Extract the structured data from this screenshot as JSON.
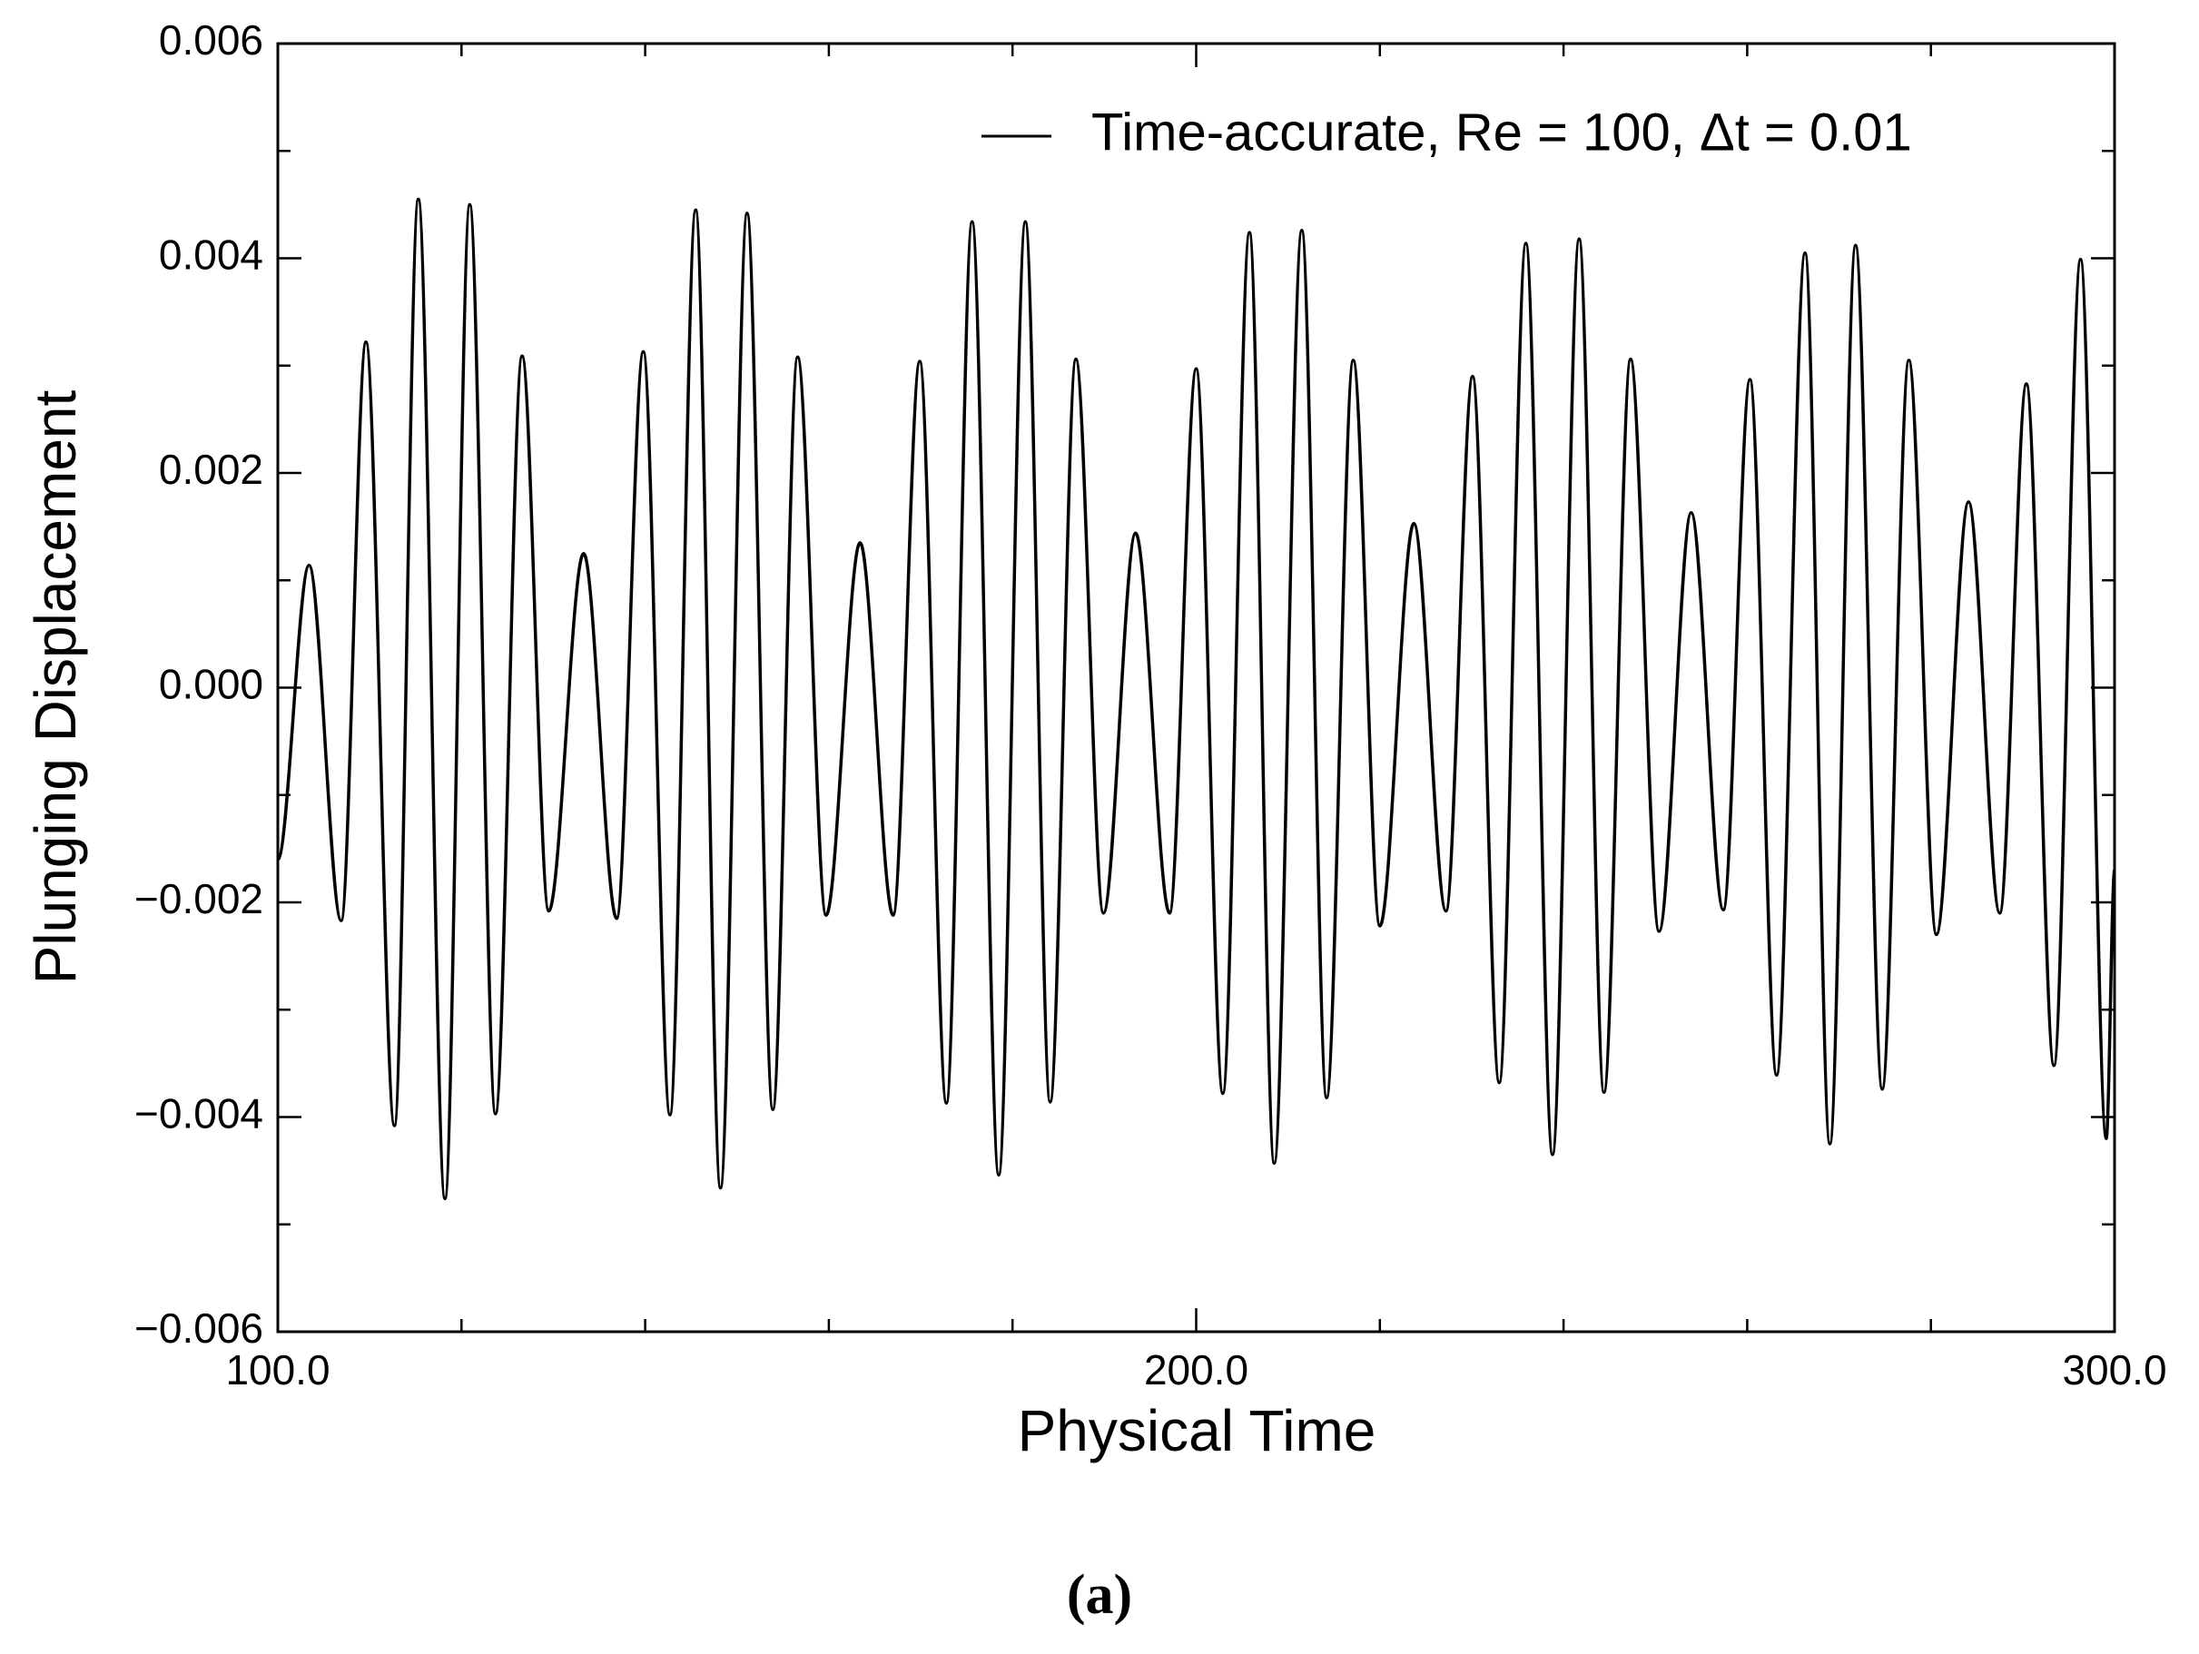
{
  "chart_data": {
    "type": "line",
    "xlabel": "Physical Time",
    "ylabel": "Plunging Displacement",
    "caption": "(a)",
    "xlim": [
      100,
      300
    ],
    "xticks": [
      {
        "value": 100,
        "label": "100.0"
      },
      {
        "value": 200,
        "label": "200.0"
      },
      {
        "value": 300,
        "label": "300.0"
      }
    ],
    "xminorticks": [
      120,
      140,
      160,
      180,
      220,
      240,
      260,
      280
    ],
    "ylim": [
      -0.006,
      0.006
    ],
    "yticks": [
      {
        "value": -0.006,
        "label": "−0.006"
      },
      {
        "value": -0.004,
        "label": "−0.004"
      },
      {
        "value": -0.002,
        "label": "−0.002"
      },
      {
        "value": 0,
        "label": "0.000"
      },
      0.002,
      0.004,
      0.006
    ],
    "yminorticks": [
      -0.005,
      -0.003,
      -0.001,
      0.001,
      0.003,
      0.005
    ],
    "legend": "top-right",
    "x": [
      100,
      103.4,
      106.9,
      109.6,
      112.7,
      115.3,
      118.2,
      120.9,
      123.7,
      126.6,
      129.5,
      133.3,
      136.9,
      139.8,
      142.7,
      145.5,
      148.2,
      151.1,
      153.9,
      156.6,
      159.7,
      163.4,
      167.0,
      169.9,
      172.8,
      175.6,
      178.5,
      181.4,
      184.1,
      186.9,
      189.9,
      193.4,
      197.1,
      200.0,
      202.9,
      205.8,
      208.5,
      211.5,
      214.2,
      217.1,
      220.0,
      223.7,
      227.2,
      230.1,
      233.0,
      235.9,
      238.8,
      241.7,
      244.4,
      247.3,
      250.4,
      253.9,
      257.4,
      260.3,
      263.2,
      266.3,
      269.0,
      271.8,
      274.7,
      277.6,
      280.6,
      284.1,
      287.5,
      290.4,
      293.4,
      296.3,
      299.1,
      300
    ],
    "series": [
      {
        "name": "Time-accurate, Re = 100, Δt = 0.01",
        "color": "#000000",
        "values": [
          -0.0016,
          0.00114,
          -0.00217,
          0.00322,
          -0.00408,
          0.00455,
          -0.00476,
          0.0045,
          -0.00397,
          0.00309,
          -0.00208,
          0.00125,
          -0.00215,
          0.00313,
          -0.00398,
          0.00445,
          -0.00466,
          0.00442,
          -0.00393,
          0.00308,
          -0.00212,
          0.00135,
          -0.00212,
          0.00304,
          -0.00387,
          0.00434,
          -0.00454,
          0.00434,
          -0.00386,
          0.00306,
          -0.0021,
          0.00144,
          -0.0021,
          0.00297,
          -0.00378,
          0.00424,
          -0.00443,
          0.00426,
          -0.00382,
          0.00305,
          -0.00222,
          0.00153,
          -0.00208,
          0.0029,
          -0.00368,
          0.00414,
          -0.00435,
          0.00418,
          -0.00377,
          0.00306,
          -0.00227,
          0.00163,
          -0.00207,
          0.00287,
          -0.00361,
          0.00405,
          -0.00425,
          0.00412,
          -0.00374,
          0.00305,
          -0.0023,
          0.00173,
          -0.0021,
          0.00283,
          -0.00352,
          0.00399,
          -0.0042,
          -0.0017
        ]
      }
    ]
  }
}
